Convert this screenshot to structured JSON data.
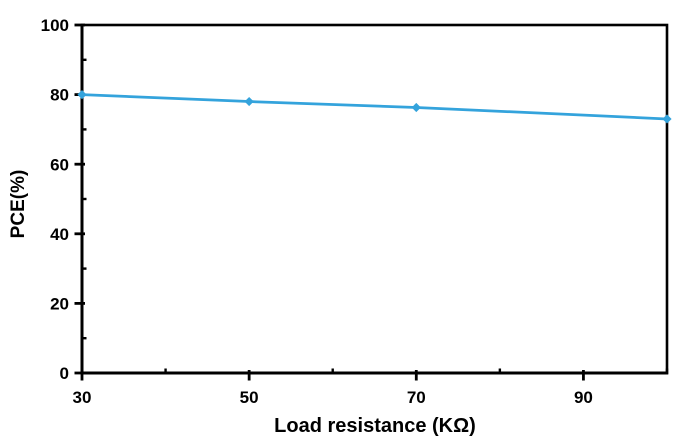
{
  "chart_data": {
    "type": "line",
    "title": "",
    "xlabel": "Load resistance (KΩ)",
    "ylabel": "PCE(%)",
    "x": [
      30,
      50,
      70,
      100
    ],
    "y": [
      80,
      78,
      76.3,
      73
    ],
    "xlim": [
      30,
      100
    ],
    "ylim": [
      0,
      100
    ],
    "x_major_ticks": [
      30,
      50,
      70,
      90
    ],
    "x_minor_ticks": [
      40,
      60,
      80,
      100
    ],
    "y_major_ticks": [
      0,
      20,
      40,
      60,
      80,
      100
    ],
    "y_minor_ticks": [
      10,
      30,
      50,
      70,
      90
    ],
    "grid": false,
    "legend": false,
    "marker": "diamond",
    "line_color": "#34A3DC",
    "axis_color": "#000000",
    "text_color": "#000000",
    "background": "#FFFFFF"
  }
}
